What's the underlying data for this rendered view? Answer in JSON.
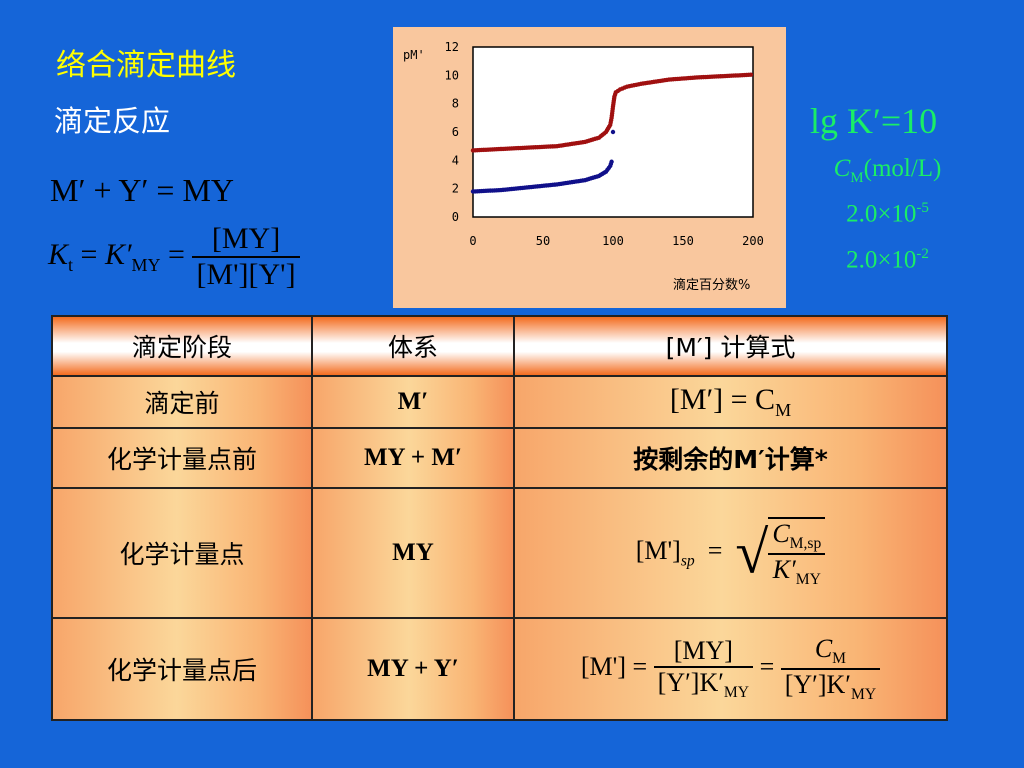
{
  "slide": {
    "title": "络合滴定曲线",
    "subtitle": "滴定反应",
    "eq1": "M′ + Y′ = MY",
    "eq2": {
      "lhs": "K",
      "lhs_sub": "t",
      "mid": "K′",
      "mid_sub": "MY",
      "num": "[MY]",
      "den": "[M'][Y']"
    },
    "side": {
      "lgk": "lg K′=10",
      "cm": "C",
      "cm_sub": "M",
      "cm_unit": "(mol/L)",
      "conc1": "2.0×10",
      "conc1_exp": "-5",
      "conc2": "2.0×10",
      "conc2_exp": "-2"
    }
  },
  "chart_data": {
    "type": "scatter",
    "ylabel": "pM'",
    "xlabel": "滴定百分数%",
    "xlim": [
      0,
      200
    ],
    "ylim": [
      0,
      12
    ],
    "xticks": [
      "0",
      "50",
      "100",
      "150",
      "200"
    ],
    "yticks": [
      "0",
      "2",
      "4",
      "6",
      "8",
      "10",
      "12"
    ],
    "series": [
      {
        "color": "#a01010",
        "x": [
          0,
          20,
          40,
          60,
          80,
          90,
          95,
          98,
          99,
          100,
          101,
          102,
          105,
          110,
          120,
          140,
          160,
          180,
          200
        ],
        "y": [
          4.7,
          4.8,
          4.9,
          5.0,
          5.3,
          5.6,
          6.0,
          6.5,
          7.0,
          7.8,
          8.5,
          8.8,
          9.0,
          9.2,
          9.4,
          9.7,
          9.85,
          9.95,
          10.05
        ]
      },
      {
        "color": "#10108a",
        "x": [
          0,
          20,
          40,
          60,
          80,
          90,
          95,
          98,
          99,
          100
        ],
        "y": [
          1.8,
          1.9,
          2.1,
          2.3,
          2.6,
          2.9,
          3.2,
          3.6,
          3.9,
          4.1
        ]
      }
    ],
    "markers": [
      {
        "x": 100,
        "y": 6.0,
        "color": "#10108a"
      }
    ]
  },
  "table": {
    "headers": [
      "滴定阶段",
      "体系",
      "[M′] 计算式"
    ],
    "rows": [
      {
        "stage": "滴定前",
        "system": "M′",
        "formula": "[M′] = C",
        "formula_sub": "M"
      },
      {
        "stage": "化学计量点前",
        "system": "MY + M′",
        "formula": "按剩余的M′计算*"
      },
      {
        "stage": "化学计量点",
        "system": "MY",
        "lhs": "[M']",
        "lhs_sub": "sp",
        "num": "C",
        "num_sub": "M,sp",
        "den": "K′",
        "den_sub": "MY"
      },
      {
        "stage": "化学计量点后",
        "system": "MY + Y′",
        "lhs": "[M'] =",
        "num1": "[MY]",
        "den1": "[Y′]K′",
        "den1_sub": "MY",
        "num2": "C",
        "num2_sub": "M",
        "den2": "[Y′]K′",
        "den2_sub": "MY"
      }
    ]
  }
}
